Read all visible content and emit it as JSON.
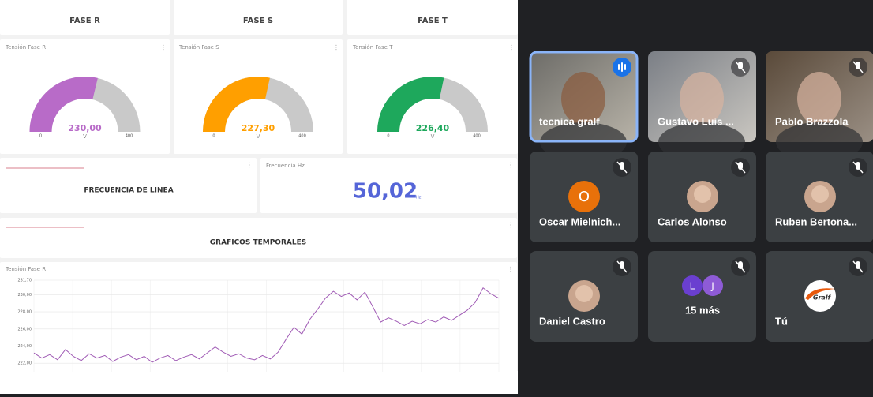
{
  "dashboard": {
    "phase_headers": [
      "FASE R",
      "FASE S",
      "FASE T"
    ],
    "gauges": [
      {
        "title": "Tensión Fase R",
        "value": 230,
        "value_label": "230,00",
        "unit": "V",
        "min": 0,
        "max": 400,
        "color": "#b86bc8"
      },
      {
        "title": "Tensión Fase S",
        "value": 227.3,
        "value_label": "227,30",
        "unit": "V",
        "min": 0,
        "max": 400,
        "color": "#ff9f00"
      },
      {
        "title": "Tensión Fase T",
        "value": 226.4,
        "value_label": "226,40",
        "unit": "V",
        "min": 0,
        "max": 400,
        "color": "#1ea85c"
      }
    ],
    "frequency": {
      "section": "FRECUENCIA DE LINEA",
      "title": "Frecuencia Hz",
      "value": "50,02",
      "unit": "Hz"
    },
    "charts_section": "GRAFICOS TEMPORALES"
  },
  "chart_data": {
    "type": "line",
    "title": "Tensión Fase R",
    "color": "#a05bb5",
    "grid": true,
    "ylim": [
      221,
      231.7
    ],
    "yticks": [
      {
        "value": 222,
        "label": "222,00"
      },
      {
        "value": 224,
        "label": "224,00"
      },
      {
        "value": 226,
        "label": "226,00"
      },
      {
        "value": 228,
        "label": "228,00"
      },
      {
        "value": 230,
        "label": "230,00"
      },
      {
        "value": 231.7,
        "label": "231,70"
      }
    ],
    "values": [
      223.2,
      222.6,
      223.0,
      222.4,
      223.6,
      222.8,
      222.3,
      223.1,
      222.6,
      222.9,
      222.2,
      222.7,
      223.0,
      222.4,
      222.8,
      222.1,
      222.6,
      222.9,
      222.3,
      222.7,
      223.0,
      222.5,
      223.2,
      223.9,
      223.3,
      222.8,
      223.1,
      222.6,
      222.4,
      222.9,
      222.5,
      223.3,
      224.8,
      226.2,
      225.4,
      227.1,
      228.3,
      229.6,
      230.4,
      229.8,
      230.2,
      229.4,
      230.3,
      228.6,
      226.8,
      227.3,
      226.9,
      226.4,
      226.9,
      226.6,
      227.1,
      226.8,
      227.4,
      227.0,
      227.6,
      228.2,
      229.1,
      230.8,
      230.1,
      229.6
    ]
  },
  "meeting": {
    "participants": [
      {
        "name": "tecnica gralf"
      },
      {
        "name": "Gustavo Luis ..."
      },
      {
        "name": "Pablo Brazzola"
      },
      {
        "name": "Oscar Mielnich...",
        "initial": "O"
      },
      {
        "name": "Carlos Alonso"
      },
      {
        "name": "Ruben Bertona..."
      },
      {
        "name": "Daniel Castro"
      },
      {
        "name": "15 más",
        "initials": [
          "L",
          "J"
        ]
      },
      {
        "name": "Tú",
        "logo": "Gralf"
      }
    ]
  }
}
